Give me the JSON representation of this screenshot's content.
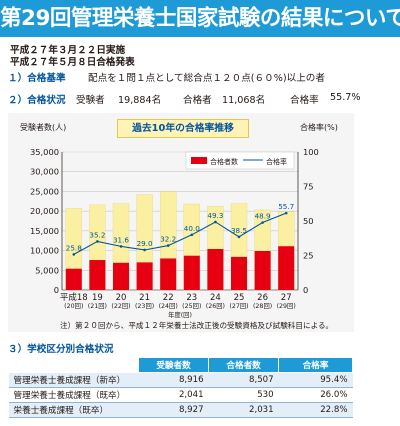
{
  "header": {
    "title": "第29回管理栄養士国家試験の結果について"
  },
  "dates": {
    "exam": "平成２７年３月２２日実施",
    "announce": "平成２７年５月８日合格発表"
  },
  "criteria": {
    "label": "１）合格基準",
    "text": "配点を１問１点として総合点１２０点(６０%)以上の者"
  },
  "status": {
    "label": "２）合格状況",
    "examinees_label": "受験者",
    "examinees": "19,884名",
    "passers_label": "合格者",
    "passers": "11,068名",
    "rate_label": "合格率",
    "rate": "55.7%"
  },
  "chart_data": {
    "type": "bar",
    "title": "過去10年の合格率推移",
    "ylabel_left": "受験者数(人)",
    "ylabel_right": "合格率(%)",
    "xlabel": "年度(回)",
    "ylim_left": [
      0,
      35000
    ],
    "ylim_right": [
      0,
      100
    ],
    "left_ticks": [
      "0",
      "5,000",
      "10,000",
      "15,000",
      "20,000",
      "25,000",
      "30,000",
      "35,000"
    ],
    "right_ticks": [
      "0",
      "25",
      "50",
      "75",
      "100"
    ],
    "categories": [
      "平成18",
      "19",
      "20",
      "21",
      "22",
      "23",
      "24",
      "25",
      "26",
      "27"
    ],
    "categories_sub": [
      "(20回)",
      "(21回)",
      "(22回)",
      "(23回)",
      "(24回)",
      "(25回)",
      "(26回)",
      "(27回)",
      "(28回)",
      "(29回)"
    ],
    "legend": [
      "合格者数",
      "合格率"
    ],
    "series": [
      {
        "name": "受験者数",
        "color": "#fbf0a2",
        "values": [
          20700,
          21600,
          21900,
          24200,
          24900,
          21800,
          21200,
          21900,
          20300,
          19900
        ]
      },
      {
        "name": "合格者数",
        "color": "#e60012",
        "values": [
          5400,
          7600,
          6900,
          7000,
          8000,
          8700,
          10400,
          8400,
          9900,
          11100
        ]
      },
      {
        "name": "合格率",
        "color": "#00549e",
        "values": [
          25.8,
          35.2,
          31.6,
          29.0,
          32.2,
          40.0,
          49.3,
          38.5,
          48.9,
          55.7
        ]
      }
    ],
    "rate_labels": [
      "25.8",
      "35.2",
      "31.6",
      "29.0",
      "32.2",
      "40.0",
      "49.3",
      "38.5",
      "48.9",
      "55.7"
    ]
  },
  "note": "注）第２０回から、平成１２年栄養士法改正後の受験資格及び試験科目による。",
  "school": {
    "label": "３）学校区分別合格状況",
    "headers": [
      "",
      "受験者数",
      "合格者数",
      "合格率"
    ],
    "rows": [
      [
        "管理栄養士養成課程（新卒）",
        "8,916",
        "8,507",
        "95.4%"
      ],
      [
        "管理栄養士養成課程（既卒）",
        "2,041",
        "530",
        "26.0%"
      ],
      [
        "栄養士養成課程（既卒）",
        "8,927",
        "2,031",
        "22.8%"
      ]
    ]
  }
}
